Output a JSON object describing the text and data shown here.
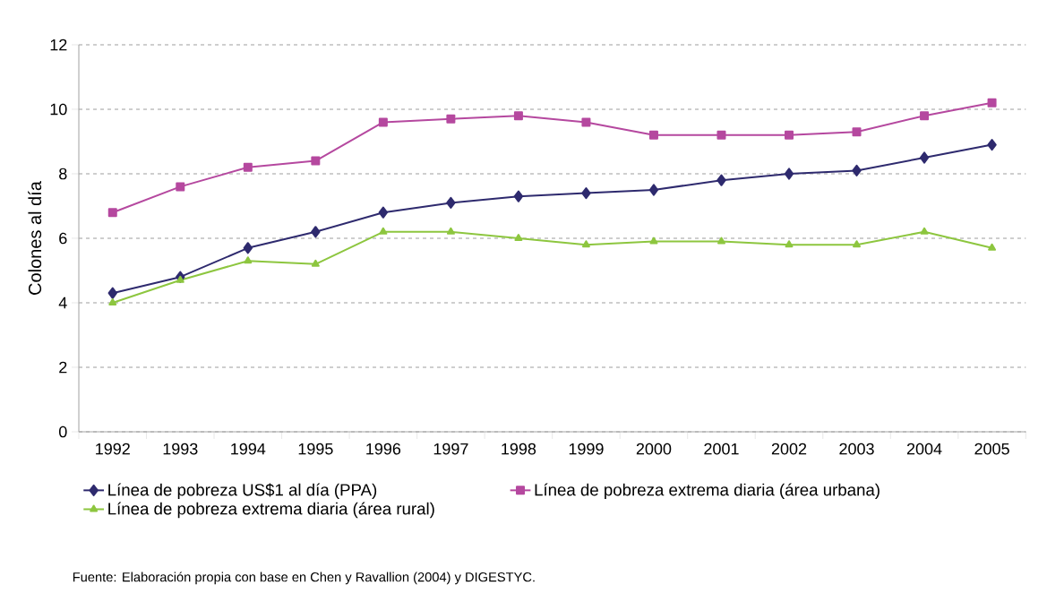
{
  "chart_data": {
    "type": "line",
    "ylabel": "Colones al día",
    "categories": [
      "1992",
      "1993",
      "1994",
      "1995",
      "1996",
      "1997",
      "1998",
      "1999",
      "2000",
      "2001",
      "2002",
      "2003",
      "2004",
      "2005"
    ],
    "series": [
      {
        "name": "Línea de pobreza US$1 al día (PPA)",
        "color": "#2e2a6e",
        "marker": "diamond",
        "values": [
          4.3,
          4.8,
          5.7,
          6.2,
          6.8,
          7.1,
          7.3,
          7.4,
          7.5,
          7.8,
          8.0,
          8.1,
          8.5,
          8.9
        ]
      },
      {
        "name": "Línea de pobreza extrema diaria (área urbana)",
        "color": "#b5489f",
        "marker": "square",
        "values": [
          6.8,
          7.6,
          8.2,
          8.4,
          9.6,
          9.7,
          9.8,
          9.6,
          9.2,
          9.2,
          9.2,
          9.3,
          9.8,
          10.2
        ]
      },
      {
        "name": "Línea de pobreza extrema diaria (área rural)",
        "color": "#8dc63f",
        "marker": "triangle",
        "values": [
          4.0,
          4.7,
          5.3,
          5.2,
          6.2,
          6.2,
          6.0,
          5.8,
          5.9,
          5.9,
          5.8,
          5.8,
          6.2,
          5.7
        ]
      }
    ],
    "ylim": [
      0,
      12
    ],
    "yticks": [
      0,
      2,
      4,
      6,
      8,
      10,
      12
    ],
    "grid": "y",
    "legend": "bottom",
    "line_style": "solid",
    "annotations": [
      "Fuente: Elaboración propia con base en Chen y Ravallion (2004) y DIGESTYC."
    ]
  }
}
